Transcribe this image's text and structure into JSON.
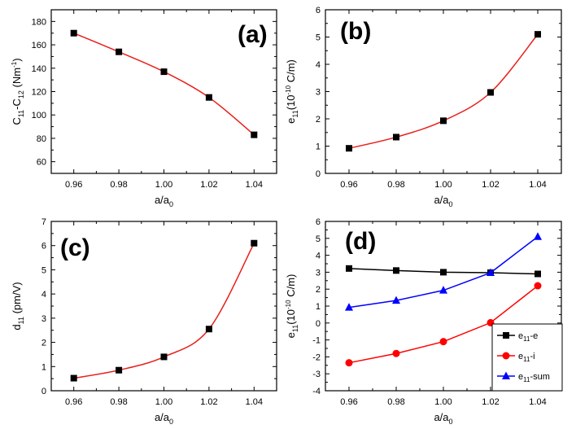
{
  "chart_data": [
    {
      "panel": "(a)",
      "type": "line",
      "ylabel": {
        "base": "C",
        "sub1": "11",
        "mid": "-C",
        "sub2": "12",
        "unit": " (Nm",
        "sup": "-1",
        "end": ")"
      },
      "xlabel": {
        "base": "a/a",
        "sub": "0"
      },
      "xlim": [
        0.95,
        1.05
      ],
      "ylim": [
        50,
        190
      ],
      "xticks": [
        "0.96",
        "0.98",
        "1.00",
        "1.02",
        "1.04"
      ],
      "yticks": [
        "60",
        "80",
        "100",
        "120",
        "140",
        "160",
        "180"
      ],
      "series": [
        {
          "x": [
            0.96,
            0.98,
            1.0,
            1.02,
            1.04
          ],
          "y": [
            170,
            154,
            137,
            115,
            83
          ],
          "marker": "square",
          "color": "#000000",
          "line": "#e8201a"
        }
      ]
    },
    {
      "panel": "(b)",
      "type": "line",
      "ylabel": {
        "base": "e",
        "sub1": "11",
        "unit": "(10",
        "sup": "-10",
        "end": " C/m)"
      },
      "xlabel": {
        "base": "a/a",
        "sub": "0"
      },
      "xlim": [
        0.95,
        1.05
      ],
      "ylim": [
        0,
        6
      ],
      "xticks": [
        "0.96",
        "0.98",
        "1.00",
        "1.02",
        "1.04"
      ],
      "yticks": [
        "0",
        "1",
        "2",
        "3",
        "4",
        "5",
        "6"
      ],
      "series": [
        {
          "x": [
            0.96,
            0.98,
            1.0,
            1.02,
            1.04
          ],
          "y": [
            0.92,
            1.33,
            1.93,
            2.97,
            5.1
          ],
          "marker": "square",
          "color": "#000000",
          "line": "#e8201a"
        }
      ]
    },
    {
      "panel": "(c)",
      "type": "line",
      "ylabel": {
        "base": "d",
        "sub1": "11",
        "unit": " (pm/V)"
      },
      "xlabel": {
        "base": "a/a",
        "sub": "0"
      },
      "xlim": [
        0.95,
        1.05
      ],
      "ylim": [
        0,
        7
      ],
      "xticks": [
        "0.96",
        "0.98",
        "1.00",
        "1.02",
        "1.04"
      ],
      "yticks": [
        "0",
        "1",
        "2",
        "3",
        "4",
        "5",
        "6",
        "7"
      ],
      "series": [
        {
          "x": [
            0.96,
            0.98,
            1.0,
            1.02,
            1.04
          ],
          "y": [
            0.52,
            0.85,
            1.4,
            2.55,
            6.1
          ],
          "marker": "square",
          "color": "#000000",
          "line": "#e8201a"
        }
      ]
    },
    {
      "panel": "(d)",
      "type": "line",
      "ylabel": {
        "base": "e",
        "sub1": "11",
        "unit": "(10",
        "sup": "-10",
        "end": " C/m)"
      },
      "xlabel": {
        "base": "a/a",
        "sub": "0"
      },
      "xlim": [
        0.95,
        1.05
      ],
      "ylim": [
        -4,
        6
      ],
      "xticks": [
        "0.96",
        "0.98",
        "1.00",
        "1.02",
        "1.04"
      ],
      "yticks": [
        "-4",
        "-3",
        "-2",
        "-1",
        "0",
        "1",
        "2",
        "3",
        "4",
        "5",
        "6"
      ],
      "legend_position": "bottom-right",
      "series": [
        {
          "legend_base": "e",
          "legend_sub": "11",
          "legend_end": "-e",
          "x": [
            0.96,
            0.98,
            1.0,
            1.02,
            1.04
          ],
          "y": [
            3.22,
            3.1,
            3.0,
            2.97,
            2.9
          ],
          "marker": "square",
          "color": "#000000",
          "line": "#000000"
        },
        {
          "legend_base": "e",
          "legend_sub": "11",
          "legend_end": "-i",
          "x": [
            0.96,
            0.98,
            1.0,
            1.02,
            1.04
          ],
          "y": [
            -2.35,
            -1.8,
            -1.1,
            0.02,
            2.2
          ],
          "marker": "circle",
          "color": "#ff0000",
          "line": "#ff0000"
        },
        {
          "legend_base": "e",
          "legend_sub": "11",
          "legend_end": "-sum",
          "x": [
            0.96,
            0.98,
            1.0,
            1.02,
            1.04
          ],
          "y": [
            0.92,
            1.33,
            1.93,
            2.97,
            5.1
          ],
          "marker": "triangle",
          "color": "#0000ff",
          "line": "#0000ff"
        }
      ]
    }
  ]
}
